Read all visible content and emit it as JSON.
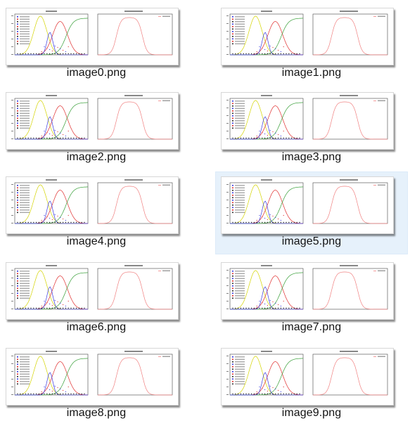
{
  "files": [
    {
      "name": "image0.png",
      "selected": false
    },
    {
      "name": "image1.png",
      "selected": false
    },
    {
      "name": "image2.png",
      "selected": false
    },
    {
      "name": "image3.png",
      "selected": false
    },
    {
      "name": "image4.png",
      "selected": false
    },
    {
      "name": "image5.png",
      "selected": true
    },
    {
      "name": "image6.png",
      "selected": false
    },
    {
      "name": "image7.png",
      "selected": false
    },
    {
      "name": "image8.png",
      "selected": false
    },
    {
      "name": "image9.png",
      "selected": false
    }
  ],
  "colors": {
    "selection_bg": "#e6f1fb",
    "curve_yellow": "#d4d400",
    "curve_red": "#e03030",
    "curve_green": "#3aa03a",
    "curve_blue": "#3a3ae0",
    "curve_pink": "#f08080"
  }
}
